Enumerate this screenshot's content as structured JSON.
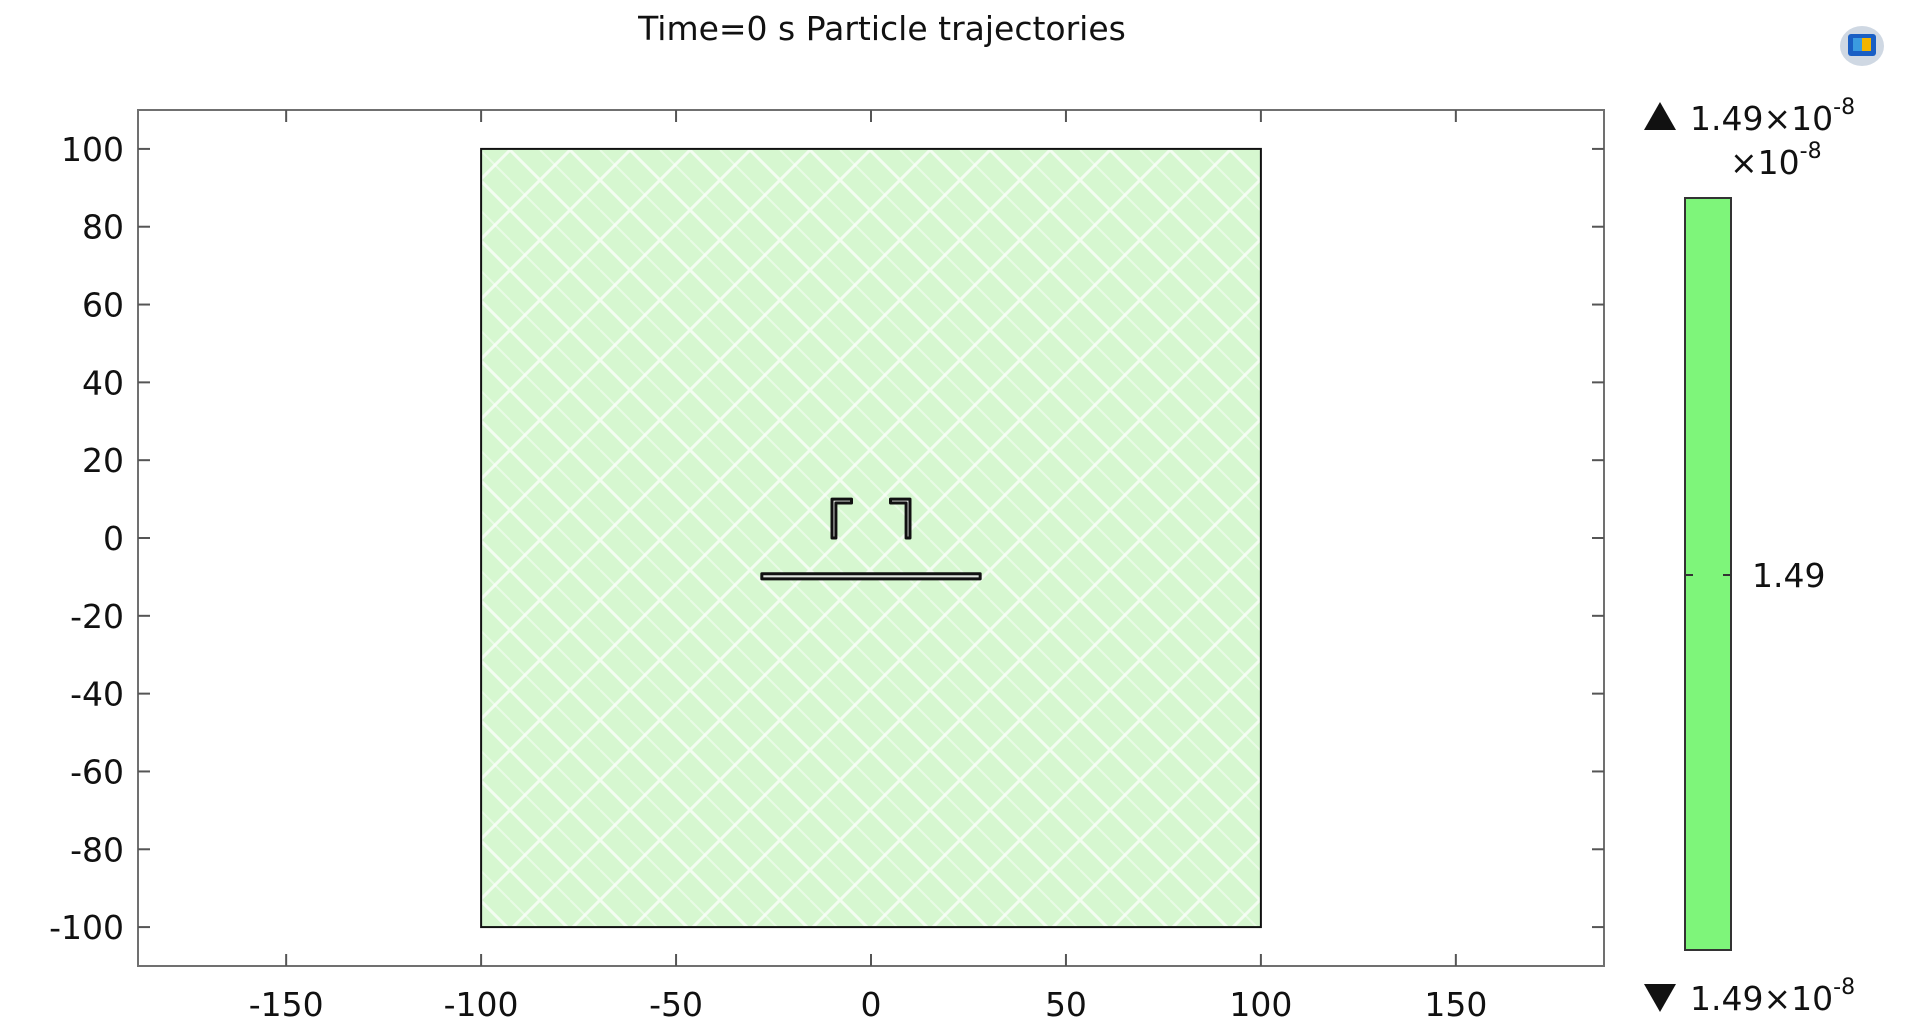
{
  "chart_data": {
    "type": "heatmap",
    "title": "Time=0 s  Particle trajectories",
    "xlim": [
      -188,
      188
    ],
    "ylim": [
      -110,
      110
    ],
    "x_ticks": [
      "-150",
      "-100",
      "-50",
      "0",
      "50",
      "100",
      "150"
    ],
    "x_tick_values": [
      -150,
      -100,
      -50,
      0,
      50,
      100,
      150
    ],
    "y_ticks": [
      "100",
      "80",
      "60",
      "40",
      "20",
      "0",
      "-20",
      "-40",
      "-60",
      "-80",
      "-100"
    ],
    "y_tick_values": [
      100,
      80,
      60,
      40,
      20,
      0,
      -20,
      -40,
      -60,
      -80,
      -100
    ],
    "domain": {
      "x": [
        -100,
        100
      ],
      "y": [
        -100,
        100
      ],
      "fill_color": "#c8f5c0"
    },
    "objects": [
      {
        "name": "bracket-left",
        "points": [
          [
            -10,
            0
          ],
          [
            -10,
            10
          ],
          [
            -5,
            10
          ],
          [
            -5,
            9
          ],
          [
            -9,
            9
          ],
          [
            -9,
            0
          ]
        ]
      },
      {
        "name": "bracket-right",
        "points": [
          [
            10,
            0
          ],
          [
            10,
            10
          ],
          [
            5,
            10
          ],
          [
            5,
            9
          ],
          [
            9,
            9
          ],
          [
            9,
            0
          ]
        ]
      },
      {
        "name": "plate",
        "points": [
          [
            -28,
            -10.5
          ],
          [
            28,
            -10.5
          ],
          [
            28,
            -9.2
          ],
          [
            -28,
            -9.2
          ]
        ]
      }
    ],
    "colorbar": {
      "max_label": "1.49",
      "max_exp": "-8",
      "multiplier_exp": "-8",
      "mid_label": "1.49",
      "min_label": "1.49",
      "min_exp": "-8",
      "times_symbol": "×10",
      "color": "#7ef57a"
    },
    "grid": false
  }
}
